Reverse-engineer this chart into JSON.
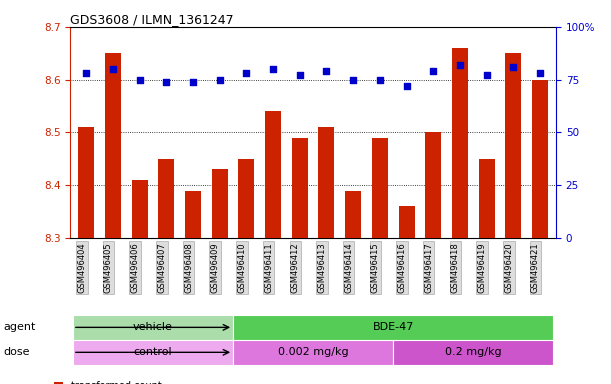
{
  "title": "GDS3608 / ILMN_1361247",
  "samples": [
    "GSM496404",
    "GSM496405",
    "GSM496406",
    "GSM496407",
    "GSM496408",
    "GSM496409",
    "GSM496410",
    "GSM496411",
    "GSM496412",
    "GSM496413",
    "GSM496414",
    "GSM496415",
    "GSM496416",
    "GSM496417",
    "GSM496418",
    "GSM496419",
    "GSM496420",
    "GSM496421"
  ],
  "bar_values": [
    8.51,
    8.65,
    8.41,
    8.45,
    8.39,
    8.43,
    8.45,
    8.54,
    8.49,
    8.51,
    8.39,
    8.49,
    8.36,
    8.5,
    8.66,
    8.45,
    8.65,
    8.6
  ],
  "percentile_values": [
    78,
    80,
    75,
    74,
    74,
    75,
    78,
    80,
    77,
    79,
    75,
    75,
    72,
    79,
    82,
    77,
    81,
    78
  ],
  "ylim_left": [
    8.3,
    8.7
  ],
  "ylim_right": [
    0,
    100
  ],
  "yticks_left": [
    8.3,
    8.4,
    8.5,
    8.6,
    8.7
  ],
  "yticks_right": [
    0,
    25,
    50,
    75,
    100
  ],
  "bar_color": "#cc2200",
  "percentile_color": "#0000cc",
  "agent_groups": [
    {
      "label": "vehicle",
      "start": 0,
      "end": 6,
      "color": "#aaddaa"
    },
    {
      "label": "BDE-47",
      "start": 6,
      "end": 18,
      "color": "#55cc55"
    }
  ],
  "dose_groups": [
    {
      "label": "control",
      "start": 0,
      "end": 6,
      "color": "#eeaaee"
    },
    {
      "label": "0.002 mg/kg",
      "start": 6,
      "end": 12,
      "color": "#dd77dd"
    },
    {
      "label": "0.2 mg/kg",
      "start": 12,
      "end": 18,
      "color": "#cc55cc"
    }
  ],
  "tick_label_bg": "#dddddd",
  "agent_label": "agent",
  "dose_label": "dose"
}
